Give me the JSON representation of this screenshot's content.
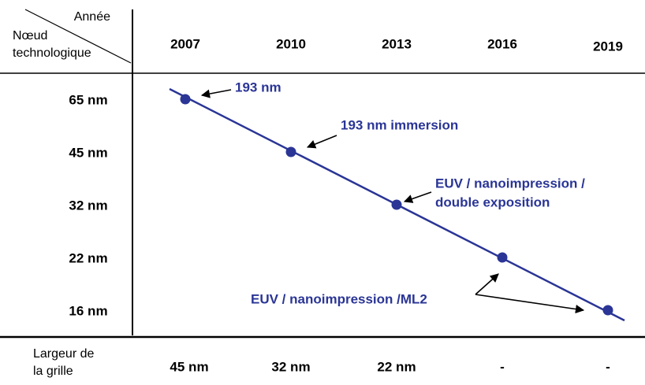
{
  "header": {
    "year_label": "Année",
    "node_label": [
      "Nœud",
      "technologique"
    ]
  },
  "years": [
    "2007",
    "2010",
    "2013",
    "2016",
    "2019"
  ],
  "nodes": [
    "65 nm",
    "45 nm",
    "32 nm",
    "22 nm",
    "16 nm"
  ],
  "annotations": [
    [
      "193 nm"
    ],
    [
      "193 nm immersion"
    ],
    [
      "EUV / nanoimpression /",
      "double exposition"
    ],
    [
      "EUV / nanoimpression /ML2"
    ]
  ],
  "footer": {
    "label": [
      "Largeur de",
      "la grille"
    ],
    "values": [
      "45 nm",
      "32 nm",
      "22 nm",
      "-",
      "-"
    ]
  }
}
